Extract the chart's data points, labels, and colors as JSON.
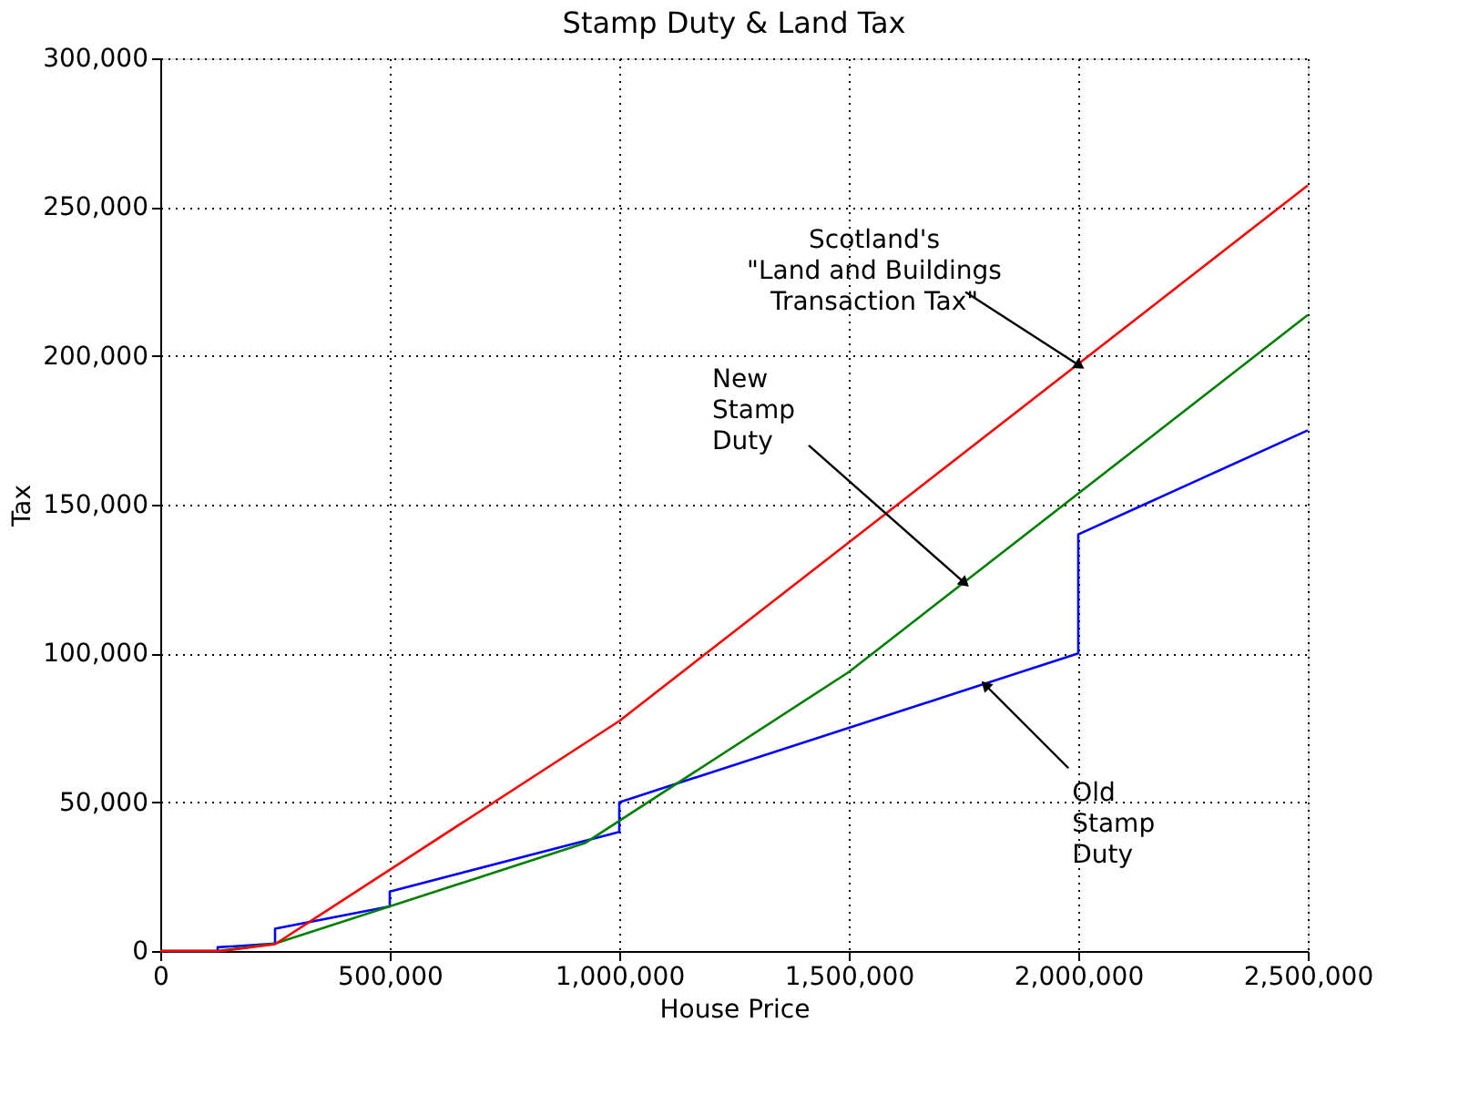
{
  "chart_data": {
    "type": "line",
    "title": "Stamp Duty & Land Tax",
    "xlabel": "House Price",
    "ylabel": "Tax",
    "xlim": [
      0,
      2500000
    ],
    "ylim": [
      0,
      300000
    ],
    "xticks": [
      {
        "value": 0,
        "label": "0"
      },
      {
        "value": 500000,
        "label": "500,000"
      },
      {
        "value": 1000000,
        "label": "1,000,000"
      },
      {
        "value": 1500000,
        "label": "1,500,000"
      },
      {
        "value": 2000000,
        "label": "2,000,000"
      },
      {
        "value": 2500000,
        "label": "2,500,000"
      }
    ],
    "yticks": [
      {
        "value": 0,
        "label": "0"
      },
      {
        "value": 50000,
        "label": "50,000"
      },
      {
        "value": 100000,
        "label": "100,000"
      },
      {
        "value": 150000,
        "label": "150,000"
      },
      {
        "value": 200000,
        "label": "200,000"
      },
      {
        "value": 250000,
        "label": "250,000"
      },
      {
        "value": 300000,
        "label": "300,000"
      }
    ],
    "grid": true,
    "legend": false,
    "line_style": "solid",
    "marker": "none",
    "series": [
      {
        "color": "#0000ff",
        "x": [
          0,
          125000,
          125000,
          250000,
          250000,
          500000,
          500000,
          1000000,
          1000000,
          2000000,
          2000000,
          2500000
        ],
        "values": [
          0,
          0,
          1250,
          2500,
          7500,
          15000,
          20000,
          40000,
          50000,
          100000,
          140000,
          175000
        ]
      },
      {
        "color": "#008000",
        "x": [
          0,
          125000,
          250000,
          925000,
          1500000,
          2500000
        ],
        "values": [
          0,
          0,
          2500,
          36250,
          93750,
          213750
        ]
      },
      {
        "color": "#ff0000",
        "x": [
          0,
          135000,
          250000,
          1000000,
          2500000
        ],
        "values": [
          0,
          0,
          2300,
          77300,
          257300
        ]
      }
    ],
    "annotations": [
      {
        "text": "Scotland's\n\"Land and Buildings\nTransaction Tax\"",
        "x": 2000000,
        "y": 197000
      },
      {
        "text": "New\nStamp\nDuty",
        "x": 1750000,
        "y": 124000
      },
      {
        "text": "Old\nStamp\nDuty",
        "x": 1800000,
        "y": 89000
      }
    ]
  }
}
